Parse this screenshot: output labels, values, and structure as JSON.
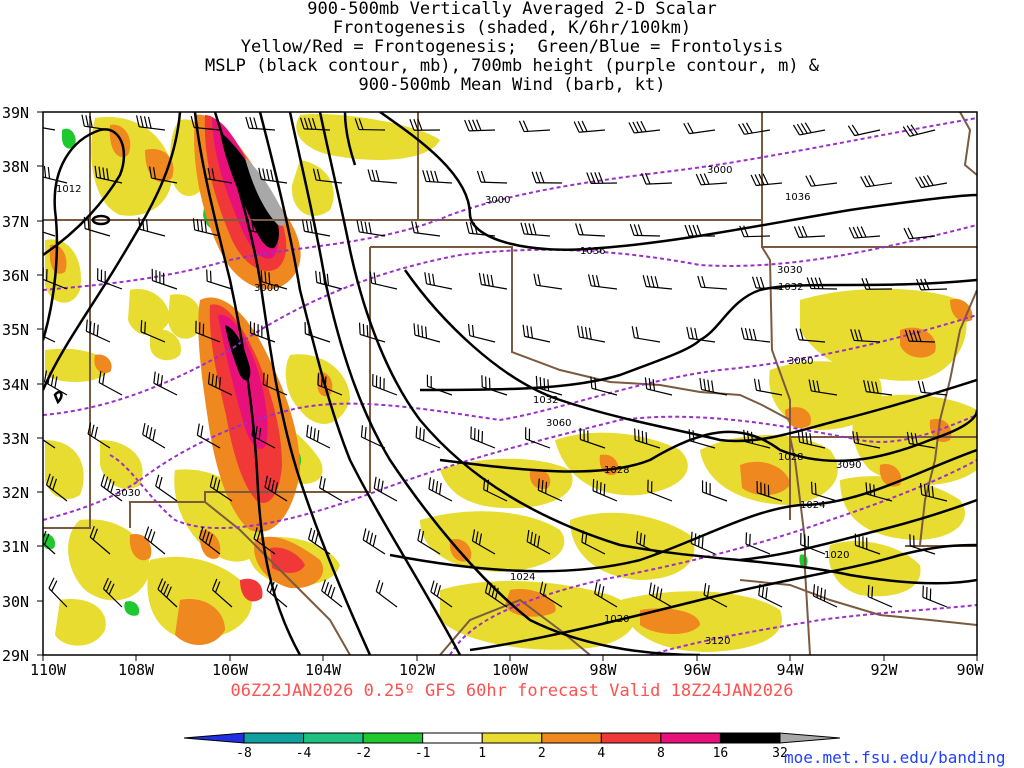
{
  "title": {
    "lines": [
      "900-500mb Vertically Averaged 2-D Scalar",
      "Frontogenesis (shaded, K/6hr/100km)",
      "Yellow/Red = Frontogenesis;  Green/Blue = Frontolysis",
      "MSLP (black contour, mb), 700mb height (purple contour, m) &",
      "900-500mb Mean Wind (barb, kt)"
    ]
  },
  "forecast_line": "06Z22JAN2026 0.25º GFS 60hr forecast Valid 18Z24JAN2026",
  "credit": "moe.met.fsu.edu/banding",
  "axes": {
    "lat_labels": [
      "39N",
      "38N",
      "37N",
      "36N",
      "35N",
      "34N",
      "33N",
      "32N",
      "31N",
      "30N",
      "29N"
    ],
    "lon_labels": [
      "110W",
      "108W",
      "106W",
      "104W",
      "102W",
      "100W",
      "98W",
      "96W",
      "94W",
      "92W",
      "90W"
    ]
  },
  "colorbar": {
    "labels": [
      "-8",
      "-4",
      "-2",
      "-1",
      "1",
      "2",
      "4",
      "8",
      "16",
      "32"
    ],
    "colors": [
      "#2030e0",
      "#10a0a0",
      "#20c080",
      "#20c830",
      "#ffffff",
      "#e8dc30",
      "#f08820",
      "#f03838",
      "#e8107a",
      "#000000",
      "#a8a8a8"
    ]
  },
  "contour_labels": {
    "mslp": [
      "1012",
      "1036",
      "1036",
      "1032",
      "1032",
      "1028",
      "1028",
      "1024",
      "1024",
      "1020",
      "1020"
    ],
    "height": [
      "3000",
      "3000",
      "3000",
      "3030",
      "3030",
      "3060",
      "3060",
      "3090",
      "3120"
    ]
  },
  "colors": {
    "mslp": "#000000",
    "height": "#9b30c8",
    "borders": "#7a5a40",
    "forecast": "#ff5050",
    "credit": "#2040ff"
  }
}
